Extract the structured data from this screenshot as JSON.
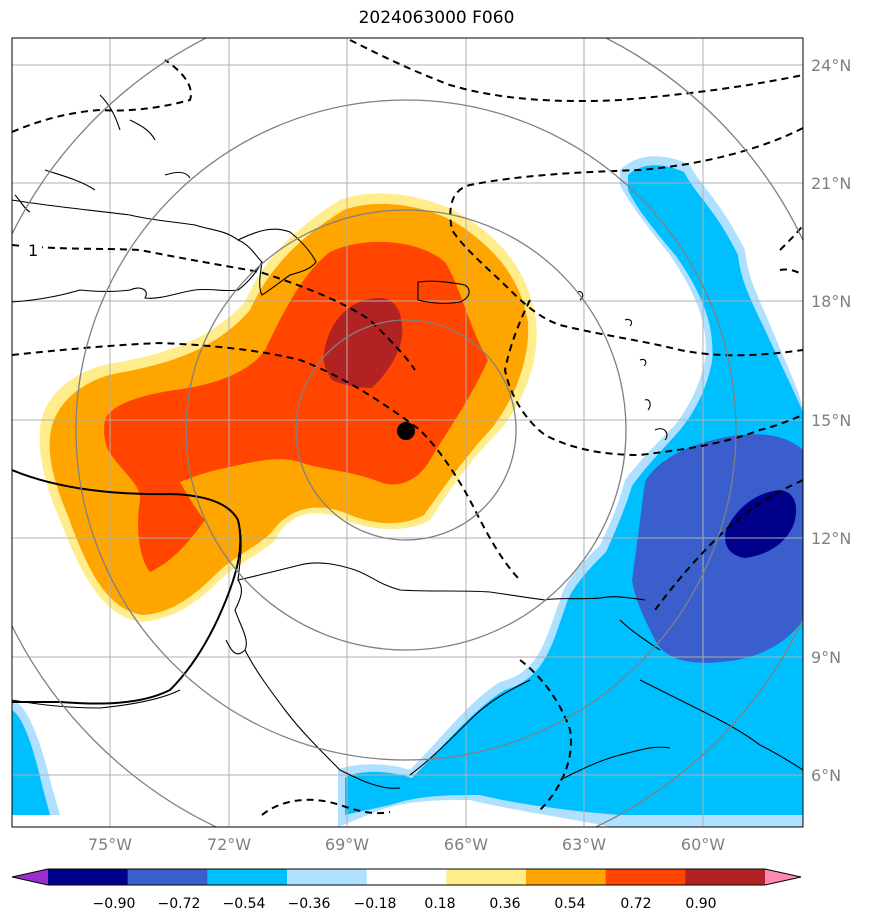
{
  "title": "2024063000 F060",
  "lat_labels": [
    "24°N",
    "21°N",
    "18°N",
    "15°N",
    "12°N",
    "9°N",
    "6°N"
  ],
  "lon_labels": [
    "75°W",
    "72°W",
    "69°W",
    "66°W",
    "63°W",
    "60°W"
  ],
  "contour_label": "1",
  "colorbar": {
    "ticks": [
      "−0.90",
      "−0.72",
      "−0.54",
      "−0.36",
      "−0.18",
      "0.18",
      "0.36",
      "0.54",
      "0.72",
      "0.90"
    ],
    "colors": [
      "#9a2fd0",
      "#00008b",
      "#3a5fcd",
      "#00bfff",
      "#b0e0ff",
      "#ffffff",
      "#ffec8b",
      "#ffa500",
      "#ff4500",
      "#b22222",
      "#ff89b5"
    ]
  },
  "legend_colors": {
    "strong_positive": "#b22222",
    "positive": "#ff4500",
    "mild_positive": "#ffa500",
    "weak_positive": "#ffec8b",
    "weak_negative": "#b0e0ff",
    "mild_negative": "#00bfff",
    "negative": "#3a5fcd",
    "strong_negative": "#00008b"
  },
  "storm_center": {
    "lon": -67.5,
    "lat": 14.7
  },
  "range_rings": 4
}
